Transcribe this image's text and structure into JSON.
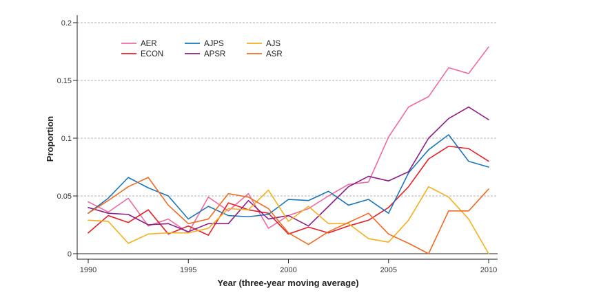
{
  "chart_data": {
    "type": "line",
    "xlabel": "Year (three-year moving average)",
    "ylabel": "Proportion",
    "xlim": [
      1990,
      2010
    ],
    "ylim": [
      0,
      0.2
    ],
    "x_ticks": [
      1990,
      1995,
      2000,
      2005,
      2010
    ],
    "x_tick_labels": [
      "1990",
      "1995",
      "2000",
      "2005",
      "2010"
    ],
    "y_ticks": [
      0,
      0.05,
      0.1,
      0.15,
      0.2
    ],
    "y_tick_labels": [
      "0",
      "0.05",
      "0.1",
      "0.15",
      "0.2"
    ],
    "grid": "horizontal dashed",
    "legend_position": "top-left",
    "x": [
      1990,
      1991,
      1992,
      1993,
      1994,
      1995,
      1996,
      1997,
      1998,
      1999,
      2000,
      2001,
      2002,
      2003,
      2004,
      2005,
      2006,
      2007,
      2008,
      2009,
      2010
    ],
    "series": [
      {
        "name": "AER",
        "color": "#ee6aa5",
        "values": [
          0.045,
          0.036,
          0.048,
          0.024,
          0.03,
          0.018,
          0.049,
          0.037,
          0.052,
          0.022,
          0.033,
          0.039,
          0.05,
          0.06,
          0.062,
          0.101,
          0.127,
          0.136,
          0.161,
          0.156,
          0.179
        ]
      },
      {
        "name": "ECON",
        "color": "#e41e26",
        "values": [
          0.018,
          0.033,
          0.027,
          0.038,
          0.017,
          0.024,
          0.016,
          0.044,
          0.038,
          0.035,
          0.017,
          0.023,
          0.018,
          0.024,
          0.029,
          0.04,
          0.058,
          0.082,
          0.093,
          0.091,
          0.08
        ]
      },
      {
        "name": "AJPS",
        "color": "#1b75bb",
        "values": [
          0.035,
          0.048,
          0.066,
          0.057,
          0.05,
          0.03,
          0.041,
          0.033,
          0.032,
          0.034,
          0.047,
          0.046,
          0.054,
          0.042,
          0.047,
          0.035,
          0.07,
          0.09,
          0.103,
          0.08,
          0.075
        ]
      },
      {
        "name": "APSR",
        "color": "#8b1d85",
        "values": [
          0.04,
          0.035,
          0.034,
          0.025,
          0.026,
          0.019,
          0.026,
          0.026,
          0.046,
          0.03,
          0.033,
          0.024,
          0.041,
          0.058,
          0.067,
          0.063,
          0.071,
          0.1,
          0.117,
          0.127,
          0.116
        ]
      },
      {
        "name": "AJS",
        "color": "#f2b01e",
        "values": [
          0.029,
          0.028,
          0.009,
          0.017,
          0.018,
          0.018,
          0.022,
          0.039,
          0.038,
          0.055,
          0.028,
          0.041,
          0.026,
          0.026,
          0.013,
          0.01,
          0.029,
          0.058,
          0.049,
          0.03,
          0.0
        ]
      },
      {
        "name": "ASR",
        "color": "#ef6a24",
        "values": [
          0.035,
          0.046,
          0.058,
          0.066,
          0.042,
          0.026,
          0.03,
          0.052,
          0.049,
          0.039,
          0.018,
          0.008,
          0.019,
          0.027,
          0.035,
          0.017,
          0.009,
          0.0,
          0.037,
          0.037,
          0.056
        ]
      }
    ]
  }
}
